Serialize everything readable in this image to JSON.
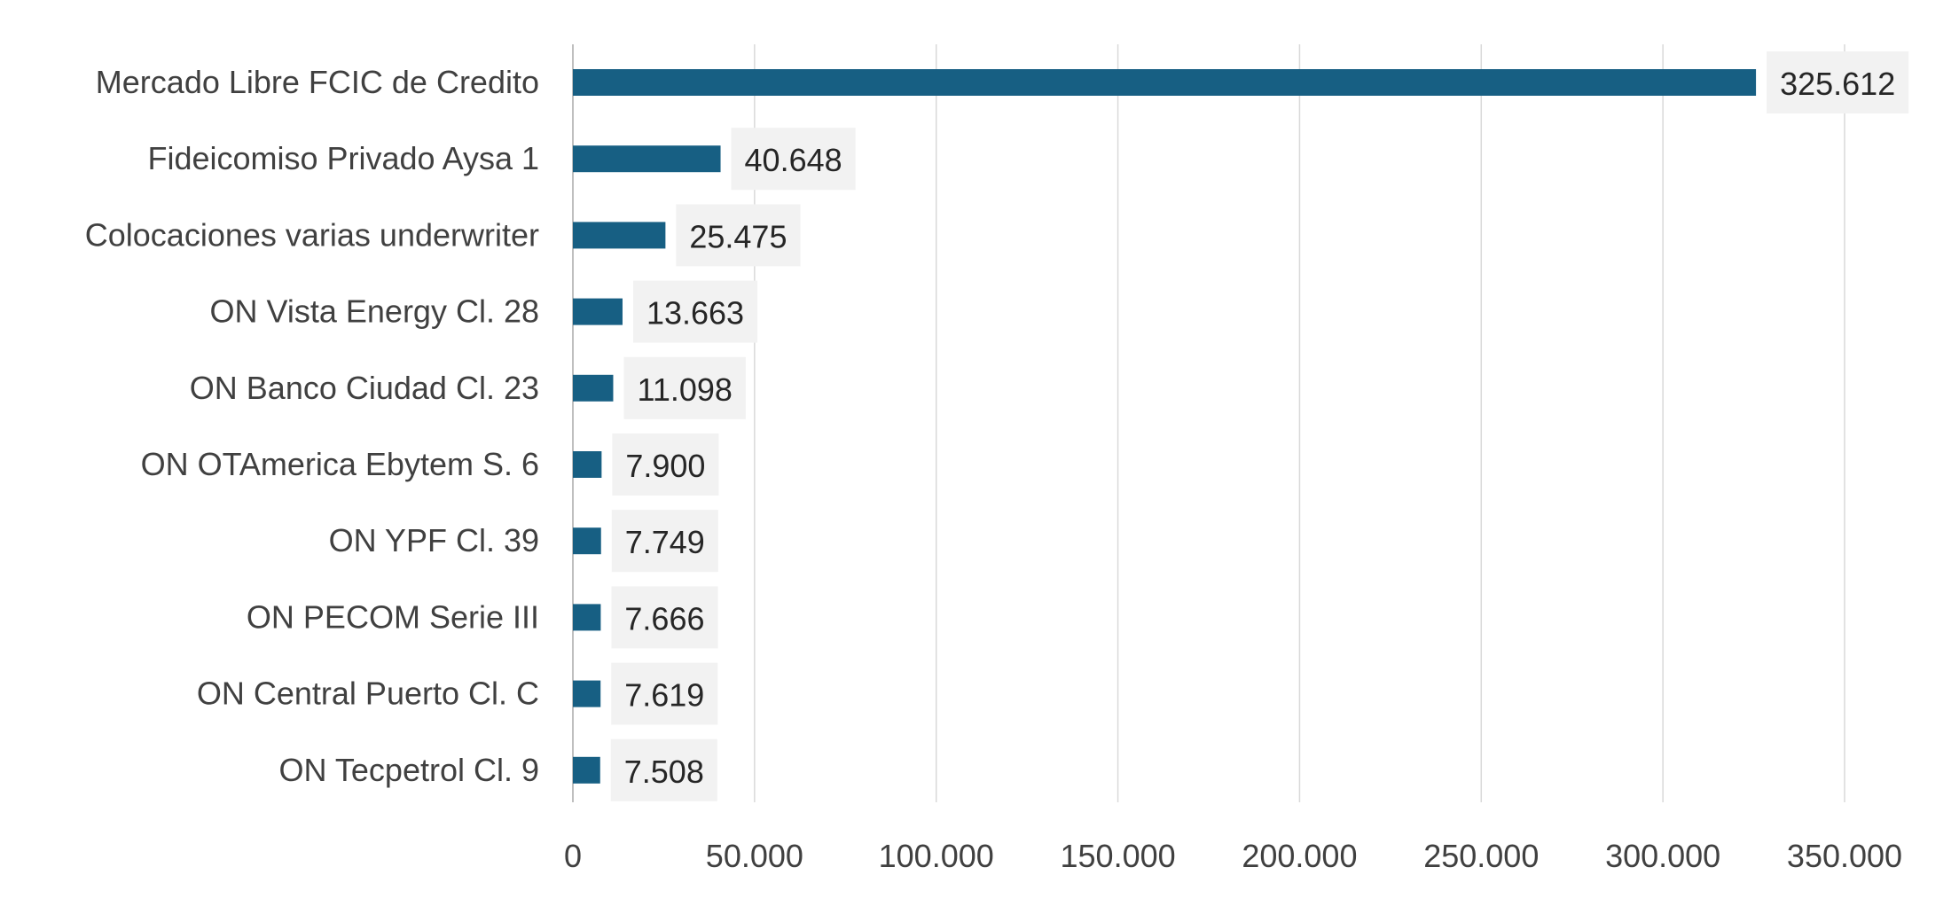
{
  "chart_data": {
    "type": "bar",
    "orientation": "horizontal",
    "categories": [
      "Mercado Libre FCIC de Credito",
      "Fideicomiso Privado Aysa 1",
      "Colocaciones varias underwriter",
      "ON Vista Energy Cl. 28",
      "ON Banco Ciudad Cl. 23",
      "ON OTAmerica Ebytem S. 6",
      "ON YPF Cl. 39",
      "ON PECOM Serie III",
      "ON Central Puerto Cl. C",
      "ON Tecpetrol Cl. 9"
    ],
    "values": [
      325612,
      40648,
      25475,
      13663,
      11098,
      7900,
      7749,
      7666,
      7619,
      7508
    ],
    "data_labels": [
      "325.612",
      "40.648",
      "25.475",
      "13.663",
      "11.098",
      "7.900",
      "7.749",
      "7.666",
      "7.619",
      "7.508"
    ],
    "x_ticks": [
      0,
      50000,
      100000,
      150000,
      200000,
      250000,
      300000,
      350000
    ],
    "x_tick_labels": [
      "0",
      "50.000",
      "100.000",
      "150.000",
      "200.000",
      "250.000",
      "300.000",
      "350.000"
    ],
    "xlim": [
      0,
      350000
    ],
    "title": "",
    "xlabel": "",
    "ylabel": "",
    "grid": "vertical",
    "legend": "none",
    "bar_color": "#175f83",
    "label_background": "#f2f2f2"
  }
}
